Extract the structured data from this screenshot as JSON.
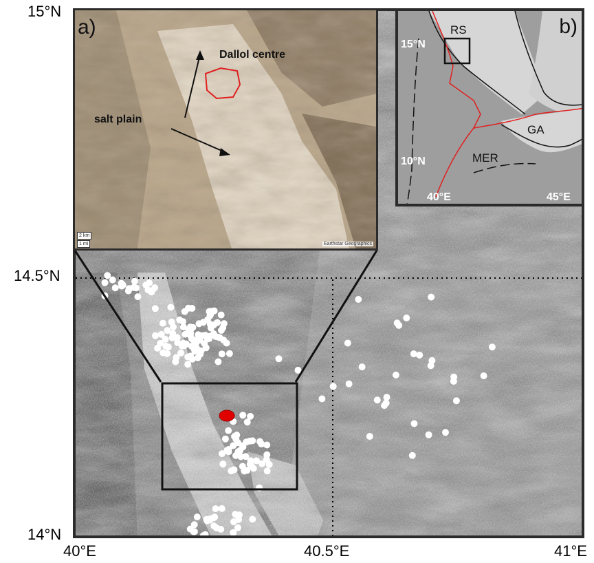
{
  "axes": {
    "lat_labels": [
      "15°N",
      "14.5°N",
      "14°N"
    ],
    "lon_labels": [
      "40°E",
      "40.5°E",
      "41°E"
    ]
  },
  "inset_a": {
    "panel_label": "a)",
    "labels": {
      "dallol": "Dallol centre",
      "salt_plain": "salt plain"
    },
    "scale_km": "2 km",
    "scale_mi": "1 mi",
    "credit": "Earthstar Geographics"
  },
  "inset_b": {
    "panel_label": "b)",
    "labels": {
      "rs": "RS",
      "ga": "GA",
      "mer": "MER"
    },
    "lat_labels": [
      "15°N",
      "10°N"
    ],
    "lon_labels": [
      "40°E",
      "45°E"
    ]
  },
  "colors": {
    "dallol_outline": "#e02020",
    "dallol_marker": "#e00000",
    "seismic_dots": "#ffffff",
    "rift_line": "#e02020"
  },
  "markers": {
    "seismicity_symbol": "white-circle",
    "dallol_symbol": "red-ellipse"
  }
}
